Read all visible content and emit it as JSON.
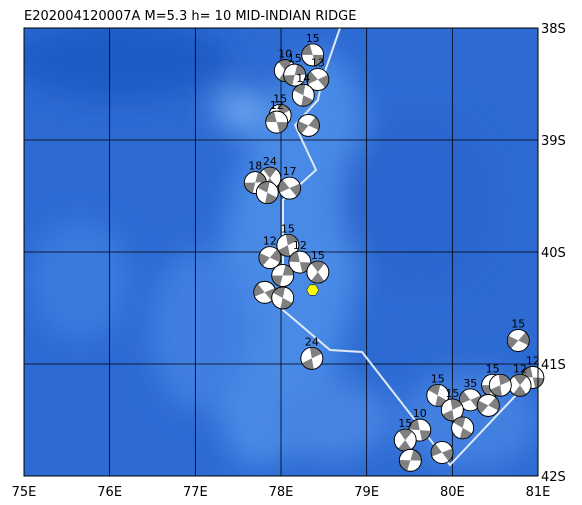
{
  "map_data": {
    "title": "E202004120007A M=5.3 h= 10 MID-INDIAN RIDGE",
    "xlim": [
      75,
      81
    ],
    "ylim": [
      -42,
      -38
    ],
    "xticks": [
      {
        "value": 75,
        "label": "75E"
      },
      {
        "value": 76,
        "label": "76E"
      },
      {
        "value": 77,
        "label": "77E"
      },
      {
        "value": 78,
        "label": "78E"
      },
      {
        "value": 79,
        "label": "79E"
      },
      {
        "value": 80,
        "label": "80E"
      },
      {
        "value": 81,
        "label": "81E"
      }
    ],
    "yticks": [
      {
        "value": -38,
        "label": "38S"
      },
      {
        "value": -39,
        "label": "39S"
      },
      {
        "value": -40,
        "label": "40S"
      },
      {
        "value": -41,
        "label": "41S"
      },
      {
        "value": -42,
        "label": "42S"
      }
    ],
    "grid": true,
    "epicenter": {
      "lon": 78.37,
      "lat": -40.34,
      "color": "#ffff00"
    },
    "events": [
      {
        "lon": 78.37,
        "lat": -38.24,
        "label": "15"
      },
      {
        "lon": 78.05,
        "lat": -38.38,
        "label": "10"
      },
      {
        "lon": 78.16,
        "lat": -38.42,
        "label": "15"
      },
      {
        "lon": 78.43,
        "lat": -38.46,
        "label": "13"
      },
      {
        "lon": 78.26,
        "lat": -38.6,
        "label": "14"
      },
      {
        "lon": 77.99,
        "lat": -38.78,
        "label": "15"
      },
      {
        "lon": 78.32,
        "lat": -38.87
      },
      {
        "lon": 77.95,
        "lat": -38.84,
        "label": "12"
      },
      {
        "lon": 77.87,
        "lat": -39.34,
        "label": "24"
      },
      {
        "lon": 77.7,
        "lat": -39.38,
        "label": "18"
      },
      {
        "lon": 78.1,
        "lat": -39.43,
        "label": "17"
      },
      {
        "lon": 77.84,
        "lat": -39.47
      },
      {
        "lon": 78.08,
        "lat": -39.94,
        "label": "15"
      },
      {
        "lon": 77.87,
        "lat": -40.05,
        "label": "12"
      },
      {
        "lon": 78.22,
        "lat": -40.09,
        "label": "12"
      },
      {
        "lon": 78.43,
        "lat": -40.18,
        "label": "15"
      },
      {
        "lon": 78.02,
        "lat": -40.21
      },
      {
        "lon": 77.81,
        "lat": -40.36
      },
      {
        "lon": 78.02,
        "lat": -40.41
      },
      {
        "lon": 78.36,
        "lat": -40.95,
        "label": "24"
      },
      {
        "lon": 80.77,
        "lat": -40.79,
        "label": "15"
      },
      {
        "lon": 80.94,
        "lat": -41.12,
        "label": "12"
      },
      {
        "lon": 80.79,
        "lat": -41.19,
        "label": "12"
      },
      {
        "lon": 80.47,
        "lat": -41.19,
        "label": "15"
      },
      {
        "lon": 80.21,
        "lat": -41.32,
        "label": "35"
      },
      {
        "lon": 79.83,
        "lat": -41.28,
        "label": "15"
      },
      {
        "lon": 80.0,
        "lat": -41.41,
        "label": "15"
      },
      {
        "lon": 80.42,
        "lat": -41.37
      },
      {
        "lon": 79.62,
        "lat": -41.59,
        "label": "10"
      },
      {
        "lon": 79.45,
        "lat": -41.68,
        "label": "15"
      },
      {
        "lon": 79.51,
        "lat": -41.86
      },
      {
        "lon": 79.88,
        "lat": -41.79
      },
      {
        "lon": 80.12,
        "lat": -41.57
      },
      {
        "lon": 80.56,
        "lat": -41.19
      }
    ]
  }
}
